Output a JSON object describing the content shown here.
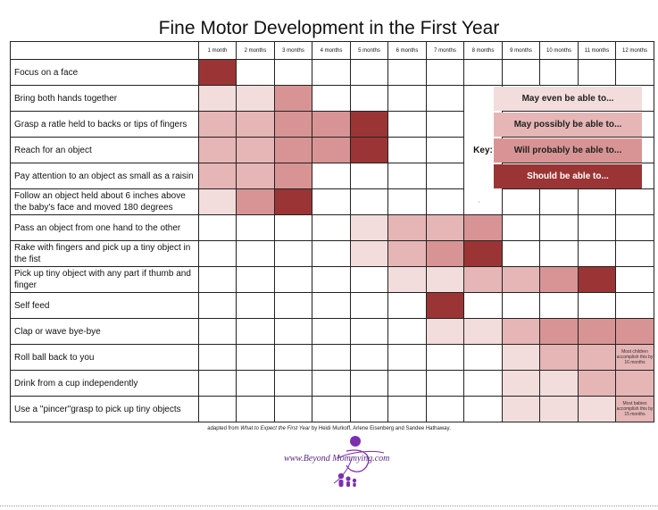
{
  "title": "Fine Motor Development in the First Year",
  "months": [
    "1 month",
    "2 months",
    "3 months",
    "4 months",
    "5 months",
    "6 months",
    "7 months",
    "8 months",
    "9 months",
    "10 months",
    "11 months",
    "12 months"
  ],
  "rows": [
    {
      "label": "Focus on a face",
      "levels": [
        4,
        0,
        0,
        0,
        0,
        0,
        0,
        0,
        0,
        0,
        0,
        0
      ]
    },
    {
      "label": "Bring both hands together",
      "levels": [
        1,
        1,
        3,
        0,
        0,
        0,
        0,
        0,
        0,
        0,
        0,
        0
      ]
    },
    {
      "label": "Grasp a ratle held to backs or tips of fingers",
      "levels": [
        2,
        2,
        3,
        3,
        4,
        0,
        0,
        0,
        0,
        0,
        0,
        0
      ]
    },
    {
      "label": "Reach for an object",
      "levels": [
        2,
        2,
        3,
        3,
        4,
        0,
        0,
        0,
        0,
        0,
        0,
        0
      ]
    },
    {
      "label": "Pay attention to an object as small as a raisin",
      "levels": [
        2,
        2,
        3,
        0,
        0,
        0,
        0,
        0,
        0,
        0,
        0,
        0
      ]
    },
    {
      "label": "Follow an object held about 6 inches above the baby's face and moved 180 degrees",
      "levels": [
        1,
        3,
        4,
        0,
        0,
        0,
        0,
        0,
        0,
        0,
        0,
        0
      ]
    },
    {
      "label": "Pass an object from one hand to the other",
      "levels": [
        0,
        0,
        0,
        0,
        1,
        2,
        2,
        3,
        0,
        0,
        0,
        0
      ]
    },
    {
      "label": "Rake with fingers and pick up a tiny object in the fist",
      "levels": [
        0,
        0,
        0,
        0,
        1,
        2,
        3,
        4,
        0,
        0,
        0,
        0
      ]
    },
    {
      "label": "Pick up tiny object with any part if thumb and finger",
      "levels": [
        0,
        0,
        0,
        0,
        0,
        1,
        1,
        2,
        2,
        3,
        4,
        0
      ]
    },
    {
      "label": "Self feed",
      "levels": [
        0,
        0,
        0,
        0,
        0,
        0,
        4,
        0,
        0,
        0,
        0,
        0
      ]
    },
    {
      "label": "Clap or wave bye-bye",
      "levels": [
        0,
        0,
        0,
        0,
        0,
        0,
        1,
        1,
        2,
        3,
        3,
        3
      ]
    },
    {
      "label": "Roll ball back to you",
      "levels": [
        0,
        0,
        0,
        0,
        0,
        0,
        0,
        0,
        1,
        2,
        2,
        2
      ]
    },
    {
      "label": "Drink from a cup independently",
      "levels": [
        0,
        0,
        0,
        0,
        0,
        0,
        0,
        0,
        1,
        1,
        2,
        2
      ]
    },
    {
      "label": "Use a \"pincer\"grasp to pick up tiny objects",
      "levels": [
        0,
        0,
        0,
        0,
        0,
        0,
        0,
        0,
        1,
        1,
        1,
        2
      ]
    }
  ],
  "notes": {
    "roll_ball": "Most children accomplish this by 16 months",
    "pincer": "Most babies accomplish this by 15 months"
  },
  "key": {
    "label": "Key:",
    "items": [
      {
        "level": 1,
        "text": "May even be able to..."
      },
      {
        "level": 2,
        "text": "May possibly be able to..."
      },
      {
        "level": 3,
        "text": "Will probably be able to..."
      },
      {
        "level": 4,
        "text": "Should be able to..."
      }
    ]
  },
  "level_colors": {
    "1": "#f2dcdc",
    "2": "#e6b5b5",
    "3": "#d89494",
    "4": "#9b3535"
  },
  "credit": {
    "prefix": "adapted from ",
    "book": "What to Expect the First Year",
    "suffix": "  by Heidi Murkoff, Arlene Eisenberg and Sandee Hathaway."
  },
  "tiny_mark": "'",
  "logo_text": "www.Beyond Mommying.com"
}
